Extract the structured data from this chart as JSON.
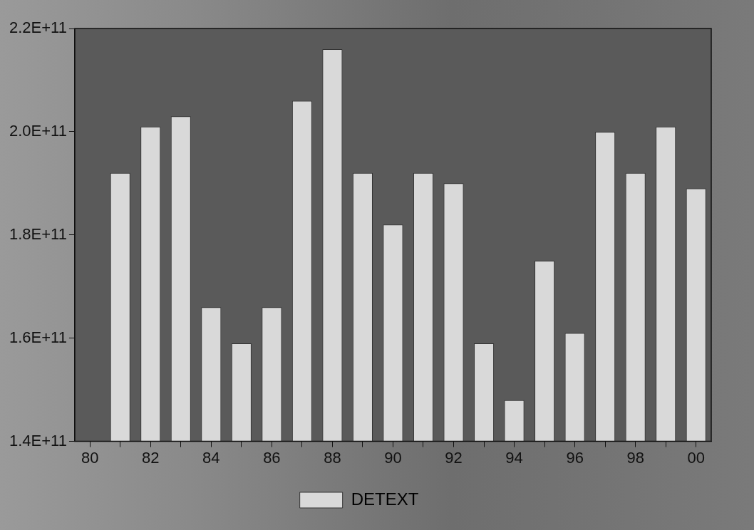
{
  "chart_data": {
    "type": "bar",
    "categories": [
      "80",
      null,
      "82",
      null,
      "84",
      null,
      "86",
      null,
      "88",
      null,
      "90",
      null,
      "92",
      null,
      "94",
      null,
      "96",
      null,
      "98",
      null,
      "00"
    ],
    "series": [
      {
        "name": "DETEXT",
        "color": "#d9d9d9",
        "values": [
          null,
          192000000000,
          201000000000,
          203000000000,
          166000000000,
          159000000000,
          166000000000,
          206000000000,
          216000000000,
          192000000000,
          182000000000,
          192000000000,
          190000000000,
          159000000000,
          148000000000,
          175000000000,
          161000000000,
          200000000000,
          192000000000,
          201000000000,
          189000000000
        ]
      }
    ],
    "ylim": [
      140000000000,
      220000000000
    ],
    "yticks": [
      {
        "value": 140000000000,
        "label": "1.4E+11"
      },
      {
        "value": 160000000000,
        "label": "1.6E+11"
      },
      {
        "value": 180000000000,
        "label": "1.8E+11"
      },
      {
        "value": 200000000000,
        "label": "2.0E+11"
      },
      {
        "value": 220000000000,
        "label": "2.2E+11"
      }
    ],
    "grid": false,
    "legend": "bottom"
  }
}
